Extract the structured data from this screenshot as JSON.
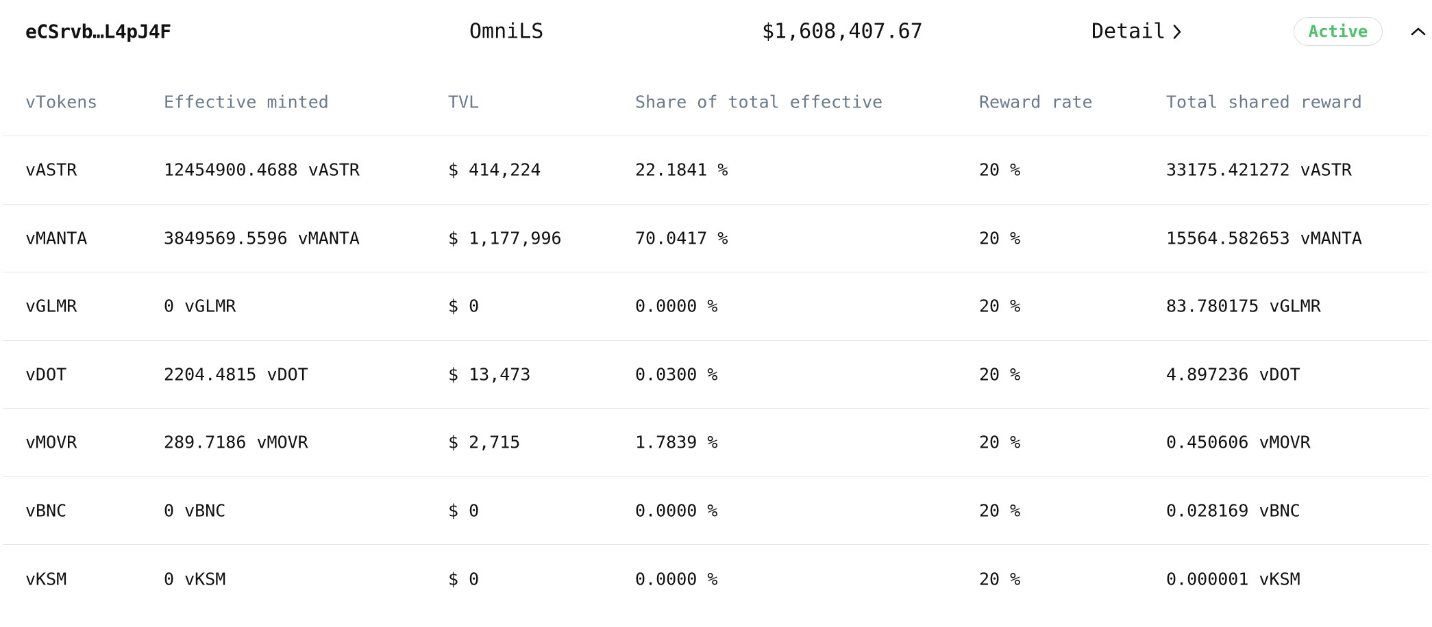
{
  "header": {
    "address": "eCSrvb…L4pJ4F",
    "name": "OmniLS",
    "total_value": "$1,608,407.67",
    "detail_label": "Detail",
    "status": "Active",
    "status_color": "#4cc36a",
    "detail_icon": "chevron-right-icon",
    "collapse_icon": "chevron-up-icon"
  },
  "table": {
    "columns": [
      "vTokens",
      "Effective minted",
      "TVL",
      "Share of total effective",
      "Reward rate",
      "Total shared reward"
    ],
    "rows": [
      [
        "vASTR",
        "12454900.4688 vASTR",
        "$ 414,224",
        "22.1841 %",
        "20 %",
        "33175.421272 vASTR"
      ],
      [
        "vMANTA",
        "3849569.5596 vMANTA",
        "$ 1,177,996",
        "70.0417 %",
        "20 %",
        "15564.582653 vMANTA"
      ],
      [
        "vGLMR",
        "0 vGLMR",
        "$ 0",
        "0.0000 %",
        "20 %",
        "83.780175 vGLMR"
      ],
      [
        "vDOT",
        "2204.4815 vDOT",
        "$ 13,473",
        "0.0300 %",
        "20 %",
        "4.897236 vDOT"
      ],
      [
        "vMOVR",
        "289.7186 vMOVR",
        "$ 2,715",
        "1.7839 %",
        "20 %",
        "0.450606 vMOVR"
      ],
      [
        "vBNC",
        "0 vBNC",
        "$ 0",
        "0.0000 %",
        "20 %",
        "0.028169 vBNC"
      ],
      [
        "vKSM",
        "0 vKSM",
        "$ 0",
        "0.0000 %",
        "20 %",
        "0.000001 vKSM"
      ]
    ]
  }
}
